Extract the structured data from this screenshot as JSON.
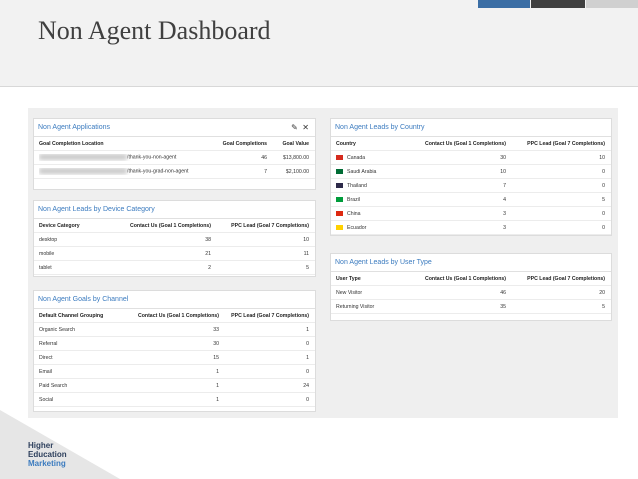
{
  "header": {
    "title": "Non Agent Dashboard"
  },
  "panels": [
    {
      "title": "Non Agent Applications",
      "columns": [
        "Goal Completion Location",
        "Goal Completions",
        "Goal Value"
      ],
      "rows": [
        [
          "/thank-you-non-agent",
          46,
          "$13,800.00"
        ],
        [
          "/thank-you-grad-non-agent",
          7,
          "$2,100.00"
        ]
      ]
    },
    {
      "title": "Non Agent Leads by Device Category",
      "columns": [
        "Device Category",
        "Contact Us (Goal 1 Completions)",
        "PPC Lead (Goal 7 Completions)"
      ],
      "rows": [
        [
          "desktop",
          38,
          10
        ],
        [
          "mobile",
          21,
          11
        ],
        [
          "tablet",
          2,
          5
        ]
      ]
    },
    {
      "title": "Non Agent Goals by Channel",
      "columns": [
        "Default Channel Grouping",
        "Contact Us (Goal 1 Completions)",
        "PPC Lead (Goal 7 Completions)"
      ],
      "rows": [
        [
          "Organic Search",
          33,
          1
        ],
        [
          "Referral",
          30,
          0
        ],
        [
          "Direct",
          15,
          1
        ],
        [
          "Email",
          1,
          0
        ],
        [
          "Paid Search",
          1,
          24
        ],
        [
          "Social",
          1,
          0
        ]
      ]
    },
    {
      "title": "Non Agent Leads by Country",
      "columns": [
        "Country",
        "Contact Us (Goal 1 Completions)",
        "PPC Lead (Goal 7 Completions)"
      ],
      "rows": [
        [
          "Canada",
          30,
          10
        ],
        [
          "Saudi Arabia",
          10,
          0
        ],
        [
          "Thailand",
          7,
          0
        ],
        [
          "Brazil",
          4,
          5
        ],
        [
          "China",
          3,
          0
        ],
        [
          "Ecuador",
          3,
          0
        ]
      ]
    },
    {
      "title": "Non Agent Leads by User Type",
      "columns": [
        "User Type",
        "Contact Us (Goal 1 Completions)",
        "PPC Lead (Goal 7 Completions)"
      ],
      "rows": [
        [
          "New Visitor",
          46,
          20
        ],
        [
          "Returning Visitor",
          35,
          5
        ]
      ]
    }
  ],
  "logo": {
    "lines": [
      "Higher",
      "Education",
      "Marketing"
    ]
  }
}
